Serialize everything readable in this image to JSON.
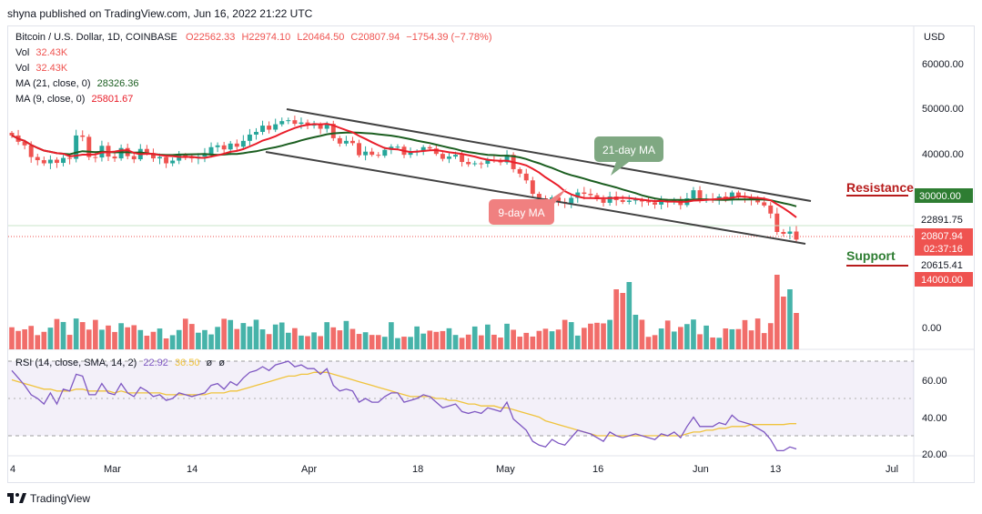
{
  "header": {
    "publisher": "shyna published on TradingView.com, Jun 16, 2022 21:22 UTC"
  },
  "legend": {
    "symbol": "Bitcoin / U.S. Dollar, 1D, COINBASE",
    "open": "O22562.33",
    "high": "H22974.10",
    "low": "L20464.50",
    "close": "C20807.94",
    "change": "−1754.39 (−7.78%)",
    "vol1_label": "Vol",
    "vol1_value": "32.43K",
    "vol2_label": "Vol",
    "vol2_value": "32.43K",
    "ma21_label": "MA (21, close, 0)",
    "ma21_value": "28326.36",
    "ma9_label": "MA (9, close, 0)",
    "ma9_value": "25801.67",
    "rsi_label": "RSI (14, close, SMA, 14, 2)",
    "rsi_value": "22.92",
    "rsi_sma_value": "36.50",
    "rsi_extra1": "ø",
    "rsi_extra2": "ø"
  },
  "axis": {
    "currency": "USD",
    "price_ticks": [
      "60000.00",
      "50000.00",
      "40000.00",
      "30000.00"
    ],
    "volume_tick": "0.00",
    "rsi_ticks": [
      "60.00",
      "40.00",
      "20.00"
    ],
    "time_labels": [
      "4",
      "Mar",
      "14",
      "Apr",
      "18",
      "May",
      "16",
      "Jun",
      "13",
      "Jul"
    ]
  },
  "price_labels": {
    "level1": "22891.75",
    "current": "20807.94",
    "countdown": "02:37:16",
    "level2": "20615.41",
    "resistance_value": "30000.00",
    "support_value": "14000.00"
  },
  "annotations": {
    "ma21": "21-day MA",
    "ma9": "9-day MA",
    "resistance": "Resistance",
    "support": "Support"
  },
  "colors": {
    "up": "#26a69a",
    "down": "#ef5350",
    "ma21": "#1b5e20",
    "ma9": "#e91e2a",
    "rsi": "#7e57c2",
    "rsi_sma": "#f0c33c",
    "resistance": "#b71c1c",
    "support": "#2e7d32"
  },
  "footer": {
    "brand": "TradingView"
  },
  "chart_data": {
    "type": "candlestick",
    "symbol": "BTC/USD",
    "timeframe": "1D",
    "y_range": [
      17000,
      66000
    ],
    "candles_ohlc_close_series": {
      "name": "close",
      "values": [
        44000,
        42600,
        41800,
        39200,
        38500,
        37800,
        38600,
        37900,
        39000,
        38800,
        44000,
        43700,
        39200,
        39100,
        41700,
        39300,
        38900,
        41200,
        39400,
        38700,
        41000,
        40100,
        38900,
        39200,
        37800,
        38400,
        39700,
        39100,
        38900,
        39300,
        39900,
        41400,
        41800,
        40900,
        42200,
        41500,
        42800,
        44200,
        44800,
        46200,
        45300,
        46500,
        47200,
        47400,
        46600,
        46900,
        46300,
        46400,
        45500,
        46600,
        43400,
        42200,
        42800,
        42300,
        39600,
        40400,
        39700,
        39500,
        40800,
        41500,
        41500,
        39700,
        40200,
        40500,
        41400,
        41100,
        39900,
        38800,
        39300,
        39700,
        38100,
        37600,
        37800,
        37700,
        38500,
        38400,
        38000,
        39700,
        36500,
        35500,
        34000,
        31000,
        30000,
        29000,
        30200,
        29200,
        28900,
        30100,
        31300,
        31000,
        30700,
        29800,
        29000,
        30400,
        29600,
        29200,
        29500,
        29700,
        29300,
        29100,
        28600,
        29300,
        29200,
        29600,
        28500,
        30000,
        31800,
        29800,
        29900,
        29800,
        30400,
        29900,
        31300,
        30500,
        30100,
        29700,
        29100,
        28400,
        26600,
        22500,
        22100,
        22600,
        20808
      ]
    },
    "ma21": {
      "name": "MA (21, close, 0)",
      "last": 28326.36
    },
    "ma9": {
      "name": "MA (9, close, 0)",
      "last": 25801.67
    },
    "volume": {
      "name": "Vol",
      "last": "32.43K"
    },
    "rsi": {
      "name": "RSI (14, close, SMA, 14, 2)",
      "y_range": [
        16,
        74
      ],
      "values": [
        65,
        61,
        57,
        52,
        50,
        47,
        53,
        47,
        55,
        54,
        63,
        62,
        52,
        52,
        58,
        53,
        52,
        58,
        53,
        51,
        56,
        54,
        51,
        52,
        49,
        50,
        53,
        52,
        51,
        52,
        53,
        57,
        58,
        55,
        59,
        57,
        61,
        64,
        65,
        67,
        65,
        68,
        69,
        70,
        67,
        68,
        66,
        66,
        63,
        66,
        57,
        54,
        55,
        54,
        48,
        50,
        48,
        48,
        51,
        53,
        53,
        48,
        49,
        50,
        52,
        51,
        48,
        45,
        46,
        47,
        43,
        42,
        43,
        42,
        45,
        44,
        43,
        48,
        39,
        36,
        33,
        27,
        25,
        24,
        28,
        26,
        25,
        29,
        33,
        32,
        31,
        29,
        27,
        32,
        30,
        29,
        30,
        31,
        30,
        29,
        28,
        31,
        30,
        32,
        29,
        35,
        40,
        35,
        35,
        35,
        37,
        36,
        41,
        38,
        37,
        36,
        34,
        32,
        28,
        22,
        22,
        24,
        22.92
      ],
      "sma_values": [
        60,
        59,
        58,
        57,
        56,
        55,
        55,
        54,
        54,
        54,
        55,
        55,
        54,
        54,
        54,
        54,
        53,
        54,
        53,
        53,
        53,
        53,
        53,
        53,
        52,
        52,
        52,
        52,
        52,
        52,
        52,
        53,
        53,
        53,
        54,
        54,
        55,
        56,
        57,
        58,
        59,
        60,
        61,
        62,
        62,
        63,
        63,
        64,
        64,
        64,
        63,
        62,
        61,
        60,
        59,
        58,
        57,
        56,
        55,
        54,
        53,
        52,
        51,
        51,
        51,
        51,
        50,
        50,
        49,
        49,
        48,
        47,
        47,
        46,
        46,
        46,
        45,
        45,
        44,
        43,
        42,
        41,
        40,
        38,
        37,
        36,
        35,
        34,
        33,
        32,
        31,
        30,
        30,
        30,
        30,
        30,
        30,
        30,
        30,
        30,
        30,
        30,
        30,
        30,
        30,
        31,
        32,
        32,
        33,
        33,
        34,
        34,
        35,
        35,
        35,
        36,
        36,
        36,
        36,
        36,
        36,
        36.5,
        36.5
      ],
      "levels": [
        70,
        50,
        30
      ]
    },
    "resistance": 30000,
    "support": 14000,
    "time_axis": [
      "4",
      "Mar",
      "14",
      "Apr",
      "18",
      "May",
      "16",
      "Jun",
      "13",
      "Jul"
    ]
  }
}
